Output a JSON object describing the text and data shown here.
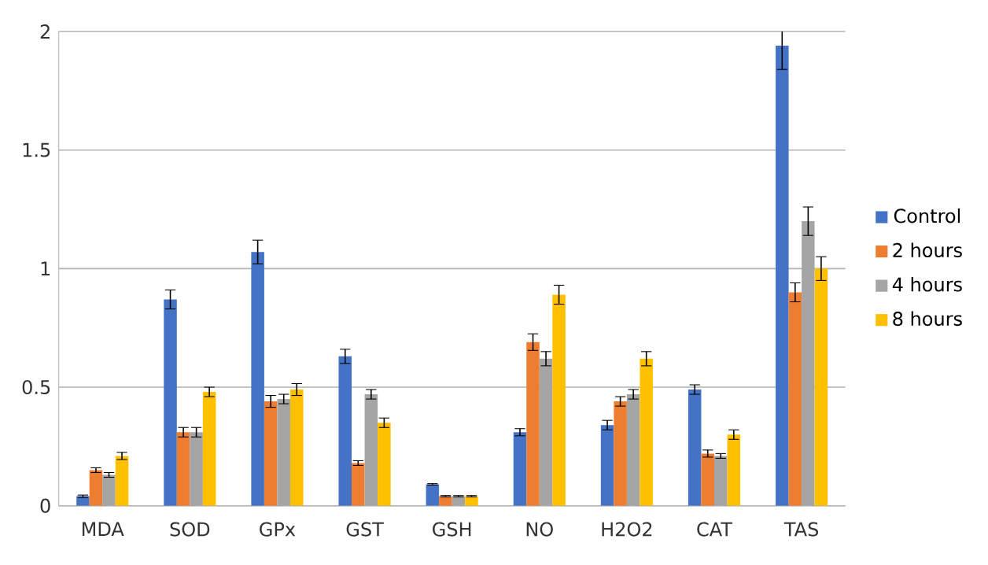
{
  "chart_data": {
    "type": "bar",
    "categories": [
      "MDA",
      "SOD",
      "GPx",
      "GST",
      "GSH",
      "NO",
      "H2O2",
      "CAT",
      "TAS"
    ],
    "series": [
      {
        "name": "Control",
        "color": "#4472c4",
        "values": [
          0.04,
          0.87,
          1.07,
          0.63,
          0.09,
          0.31,
          0.34,
          0.49,
          1.94
        ],
        "errors": [
          0.005,
          0.04,
          0.05,
          0.03,
          0.003,
          0.015,
          0.02,
          0.02,
          0.1
        ]
      },
      {
        "name": "2 hours",
        "color": "#ed7d31",
        "values": [
          0.15,
          0.31,
          0.44,
          0.18,
          0.04,
          0.69,
          0.44,
          0.22,
          0.9
        ],
        "errors": [
          0.01,
          0.02,
          0.025,
          0.01,
          0.003,
          0.035,
          0.02,
          0.015,
          0.04
        ]
      },
      {
        "name": "4 hours",
        "color": "#a5a5a5",
        "values": [
          0.13,
          0.31,
          0.45,
          0.47,
          0.04,
          0.62,
          0.47,
          0.21,
          1.2
        ],
        "errors": [
          0.01,
          0.02,
          0.02,
          0.02,
          0.003,
          0.03,
          0.02,
          0.01,
          0.06
        ]
      },
      {
        "name": "8 hours",
        "color": "#ffc000",
        "values": [
          0.21,
          0.48,
          0.49,
          0.35,
          0.04,
          0.89,
          0.62,
          0.3,
          1.0
        ],
        "errors": [
          0.015,
          0.02,
          0.025,
          0.02,
          0.003,
          0.04,
          0.03,
          0.02,
          0.05
        ]
      }
    ],
    "ylim": [
      0,
      2
    ],
    "yticks": [
      0,
      0.5,
      1,
      1.5,
      2
    ],
    "grid": "y",
    "legend": "right"
  }
}
